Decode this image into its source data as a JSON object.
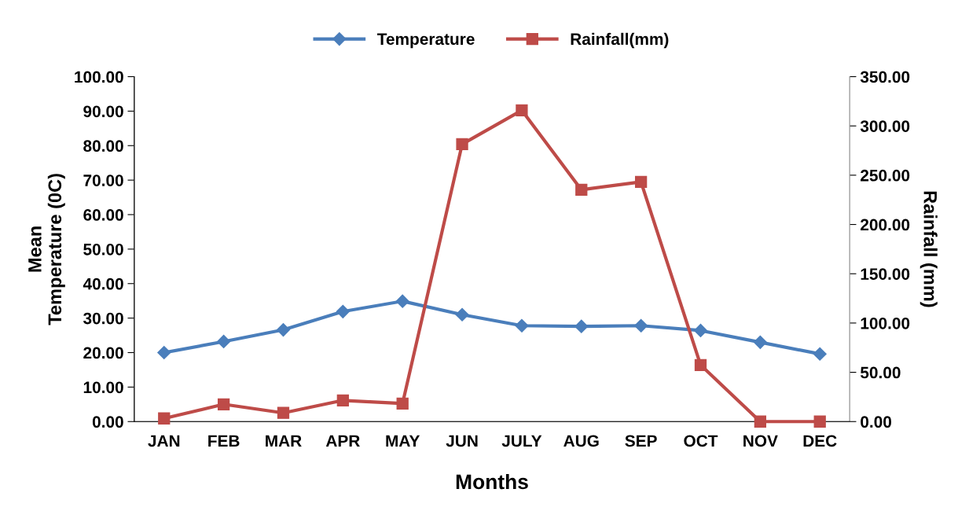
{
  "chart_data": {
    "type": "line",
    "xlabel": "Months",
    "ylabel": "Mean\nTemperature (0C)",
    "y2label": "Rainfall (mm)",
    "categories": [
      "JAN",
      "FEB",
      "MAR",
      "APR",
      "MAY",
      "JUN",
      "JULY",
      "AUG",
      "SEP",
      "OCT",
      "NOV",
      "DEC"
    ],
    "series": [
      {
        "name": "Temperature",
        "color": "#4a7ebb",
        "marker": "diamond",
        "values": [
          20.0,
          23.2,
          26.6,
          31.9,
          34.9,
          31.0,
          27.8,
          27.6,
          27.8,
          26.4,
          23.0,
          19.6
        ]
      },
      {
        "name": "Rainfall(mm)",
        "color": "#be4b48",
        "marker": "square",
        "axis": "y2",
        "values": [
          3.2,
          17.5,
          8.8,
          21.5,
          18.3,
          281.5,
          315.8,
          235.2,
          243.2,
          57.4,
          0,
          0
        ]
      }
    ],
    "ylim": [
      0,
      100
    ],
    "yticks": [
      {
        "value": 0,
        "label": "0.00"
      },
      {
        "value": 10,
        "label": "10.00"
      },
      {
        "value": 20,
        "label": "20.00"
      },
      {
        "value": 30,
        "label": "30.00"
      },
      {
        "value": 40,
        "label": "40.00"
      },
      {
        "value": 50,
        "label": "50.00"
      },
      {
        "value": 60,
        "label": "60.00"
      },
      {
        "value": 70,
        "label": "70.00"
      },
      {
        "value": 80,
        "label": "80.00"
      },
      {
        "value": 90,
        "label": "90.00"
      },
      {
        "value": 100,
        "label": "100.00"
      }
    ],
    "y2lim": [
      0,
      350
    ],
    "y2ticks": [
      {
        "value": 0,
        "label": "0.00"
      },
      {
        "value": 50,
        "label": "50.00"
      },
      {
        "value": 100,
        "label": "100.00"
      },
      {
        "value": 150,
        "label": "150.00"
      },
      {
        "value": 200,
        "label": "200.00"
      },
      {
        "value": 250,
        "label": "250.00"
      },
      {
        "value": 300,
        "label": "300.00"
      },
      {
        "value": 350,
        "label": "350.00"
      }
    ],
    "legend": "top",
    "grid": false,
    "line_style": "solid"
  }
}
